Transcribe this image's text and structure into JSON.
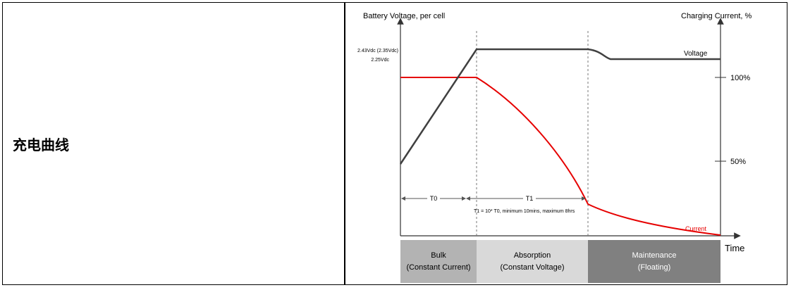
{
  "cell_label": "充电曲线",
  "left_axis_label": "Battery Voltage, per cell",
  "right_axis_label": "Charging Current, %",
  "x_axis_label": "Time",
  "voltage_levels": [
    "2.43Vdc (2.35Vdc)",
    "2.25Vdc"
  ],
  "current_levels": [
    "100%",
    "50%"
  ],
  "series": {
    "voltage": {
      "name": "Voltage",
      "color": "#404040"
    },
    "current": {
      "name": "Current",
      "color": "#e60000"
    }
  },
  "intervals": {
    "t0": "T0",
    "t1": "T1",
    "note": "T1 = 10* T0, minimum 10mins, maximum 8hrs"
  },
  "stages": [
    {
      "line1": "Bulk",
      "line2": "(Constant Current)",
      "color": "#b3b3b3"
    },
    {
      "line1": "Absorption",
      "line2": "(Constant Voltage)",
      "color": "#d9d9d9"
    },
    {
      "line1": "Maintenance",
      "line2": "(Floating)",
      "color": "#808080"
    }
  ]
}
